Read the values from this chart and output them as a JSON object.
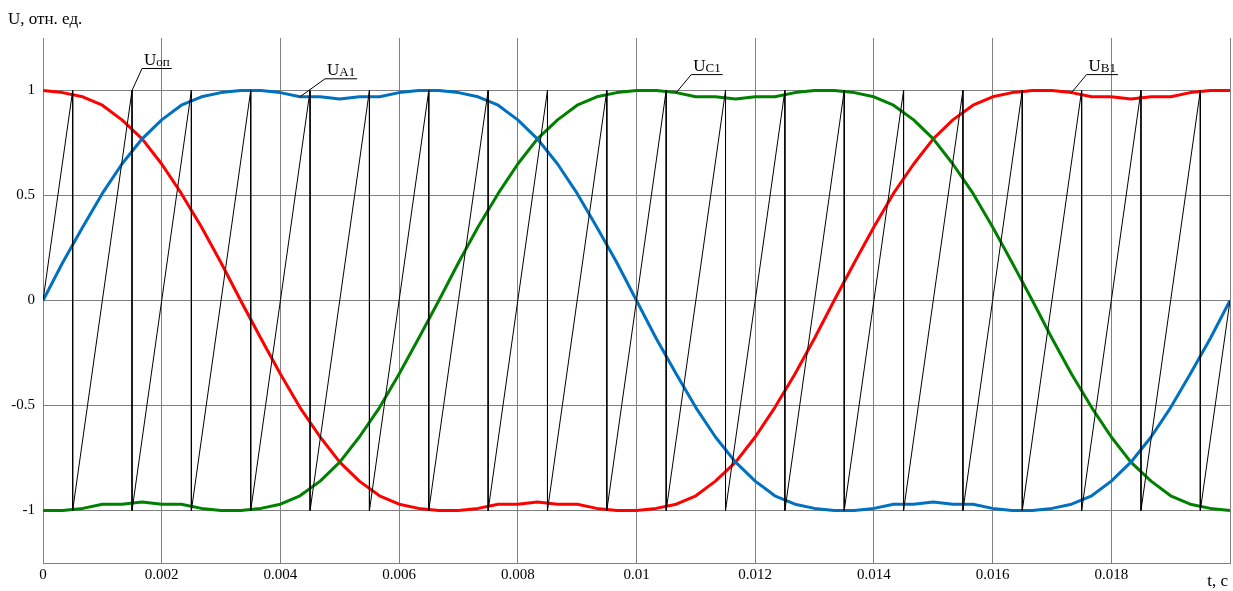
{
  "chart_data": {
    "type": "line",
    "xlabel": "t, с",
    "ylabel": "U, отн. ед.",
    "x": [
      0,
      0.00033,
      0.00067,
      0.001,
      0.00133,
      0.00167,
      0.002,
      0.00233,
      0.00267,
      0.003,
      0.00333,
      0.00367,
      0.004,
      0.00433,
      0.00467,
      0.005,
      0.00533,
      0.00567,
      0.006,
      0.00633,
      0.00667,
      0.007,
      0.00733,
      0.00767,
      0.008,
      0.00833,
      0.00867,
      0.009,
      0.00933,
      0.00967,
      0.01,
      0.01033,
      0.01067,
      0.011,
      0.01133,
      0.01167,
      0.012,
      0.01233,
      0.01267,
      0.013,
      0.01333,
      0.01367,
      0.014,
      0.01433,
      0.01467,
      0.015,
      0.01533,
      0.01567,
      0.016,
      0.01633,
      0.01667,
      0.017,
      0.01733,
      0.01767,
      0.018,
      0.01833,
      0.01867,
      0.019,
      0.01933,
      0.01967,
      0.02
    ],
    "series": [
      {
        "name": "U$_{оп}$",
        "color": "#000000",
        "x": [
          0,
          0.0005,
          0.0005,
          0.0015,
          0.0015,
          0.0025,
          0.0025,
          0.0035,
          0.0035,
          0.0045,
          0.0045,
          0.0055,
          0.0055,
          0.0065,
          0.0065,
          0.0075,
          0.0075,
          0.0085,
          0.0085,
          0.0095,
          0.0095,
          0.0105,
          0.0105,
          0.0115,
          0.0115,
          0.0125,
          0.0125,
          0.0135,
          0.0135,
          0.0145,
          0.0145,
          0.0155,
          0.0155,
          0.0165,
          0.0165,
          0.0175,
          0.0175,
          0.0185,
          0.0185,
          0.0195,
          0.0195,
          0.02
        ],
        "values": [
          0,
          1,
          -1,
          1,
          -1,
          1,
          -1,
          1,
          -1,
          1,
          -1,
          1,
          -1,
          1,
          -1,
          1,
          -1,
          1,
          -1,
          1,
          -1,
          1,
          -1,
          1,
          -1,
          1,
          -1,
          1,
          -1,
          1,
          -1,
          1,
          -1,
          1,
          -1,
          1,
          -1,
          1,
          -1,
          1,
          -1,
          0
        ]
      },
      {
        "name": "U$_{A1}$",
        "color": "#0070c0",
        "values": [
          0,
          0.18,
          0.35,
          0.51,
          0.65,
          0.77,
          0.86,
          0.93,
          0.97,
          0.99,
          1,
          1,
          0.99,
          0.97,
          0.97,
          0.96,
          0.97,
          0.97,
          0.99,
          1,
          1,
          0.99,
          0.97,
          0.93,
          0.86,
          0.77,
          0.65,
          0.51,
          0.35,
          0.18,
          0,
          -0.18,
          -0.35,
          -0.51,
          -0.65,
          -0.77,
          -0.86,
          -0.93,
          -0.97,
          -0.99,
          -1,
          -1,
          -0.99,
          -0.97,
          -0.97,
          -0.96,
          -0.97,
          -0.97,
          -0.99,
          -1,
          -1,
          -0.99,
          -0.97,
          -0.93,
          -0.86,
          -0.77,
          -0.65,
          -0.51,
          -0.35,
          -0.18,
          0
        ]
      },
      {
        "name": "U$_{C1}$",
        "color": "#008000",
        "values": [
          -1,
          -1,
          -0.99,
          -0.97,
          -0.97,
          -0.96,
          -0.97,
          -0.97,
          -0.99,
          -1,
          -1,
          -0.99,
          -0.97,
          -0.93,
          -0.86,
          -0.77,
          -0.65,
          -0.51,
          -0.35,
          -0.18,
          0,
          0.18,
          0.35,
          0.51,
          0.65,
          0.77,
          0.86,
          0.93,
          0.97,
          0.99,
          1,
          1,
          0.99,
          0.97,
          0.97,
          0.96,
          0.97,
          0.97,
          0.99,
          1,
          1,
          0.99,
          0.97,
          0.93,
          0.86,
          0.77,
          0.65,
          0.51,
          0.35,
          0.18,
          0,
          -0.18,
          -0.35,
          -0.51,
          -0.65,
          -0.77,
          -0.86,
          -0.93,
          -0.97,
          -0.99,
          -1
        ]
      },
      {
        "name": "U$_{B1}$",
        "color": "#ff0000",
        "values": [
          1,
          0.99,
          0.97,
          0.93,
          0.86,
          0.77,
          0.65,
          0.51,
          0.35,
          0.18,
          0,
          -0.18,
          -0.35,
          -0.51,
          -0.65,
          -0.77,
          -0.86,
          -0.93,
          -0.97,
          -0.99,
          -1,
          -1,
          -0.99,
          -0.97,
          -0.97,
          -0.96,
          -0.97,
          -0.97,
          -0.99,
          -1,
          -1,
          -0.99,
          -0.97,
          -0.93,
          -0.86,
          -0.77,
          -0.65,
          -0.51,
          -0.35,
          -0.18,
          0,
          0.18,
          0.35,
          0.51,
          0.65,
          0.77,
          0.86,
          0.93,
          0.97,
          0.99,
          1,
          1,
          0.99,
          0.97,
          0.97,
          0.96,
          0.97,
          0.97,
          0.99,
          1,
          1
        ]
      }
    ],
    "xlim": [
      0,
      0.02
    ],
    "ylim": [
      -1.25,
      1.25
    ],
    "xticks": [
      0,
      0.002,
      0.004,
      0.006,
      0.008,
      0.01,
      0.012,
      0.014,
      0.016,
      0.018,
      {
        "value": 0.02,
        "label": null
      }
    ],
    "yticks": [
      -1,
      -0.5,
      0,
      0.5,
      1
    ],
    "grid": true,
    "legend": false,
    "marker": "none",
    "line_style": "solid"
  }
}
